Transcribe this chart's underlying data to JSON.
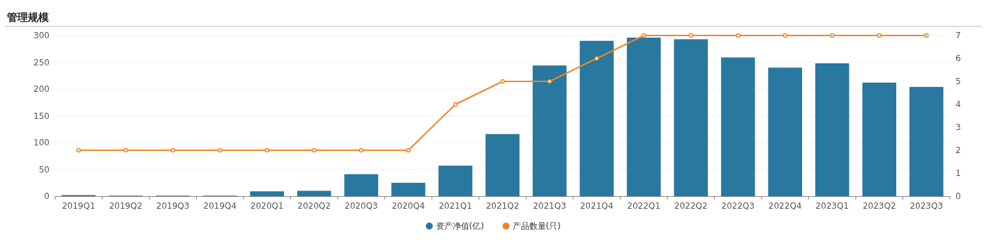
{
  "chart_data": {
    "type": "bar",
    "title": "管理规模",
    "categories": [
      "2019Q1",
      "2019Q2",
      "2019Q3",
      "2019Q4",
      "2020Q1",
      "2020Q2",
      "2020Q3",
      "2020Q4",
      "2021Q1",
      "2021Q2",
      "2021Q3",
      "2021Q4",
      "2022Q1",
      "2022Q2",
      "2022Q3",
      "2022Q4",
      "2023Q1",
      "2023Q2",
      "2023Q3"
    ],
    "series": [
      {
        "name": "资产净值(亿)",
        "color": "#2878a0",
        "values": [
          2,
          1,
          1,
          1,
          9,
          10,
          41,
          25,
          57,
          116,
          244,
          290,
          296,
          293,
          259,
          240,
          248,
          212,
          204
        ]
      },
      {
        "name": "产品数量(只)",
        "type": "line",
        "axis": "y2",
        "color": "#f0862a",
        "values": [
          2,
          2,
          2,
          2,
          2,
          2,
          2,
          2,
          4,
          5,
          5,
          6,
          7,
          7,
          7,
          7,
          7,
          7,
          7
        ]
      }
    ],
    "ylim": [
      0,
      300
    ],
    "yticks": [
      0,
      50,
      100,
      150,
      200,
      250,
      300
    ],
    "y2lim": [
      0,
      7
    ],
    "y2ticks": [
      0,
      1,
      2,
      3,
      4,
      5,
      6,
      7
    ],
    "grid": "y",
    "legend": "bottom",
    "marker": "circle"
  }
}
